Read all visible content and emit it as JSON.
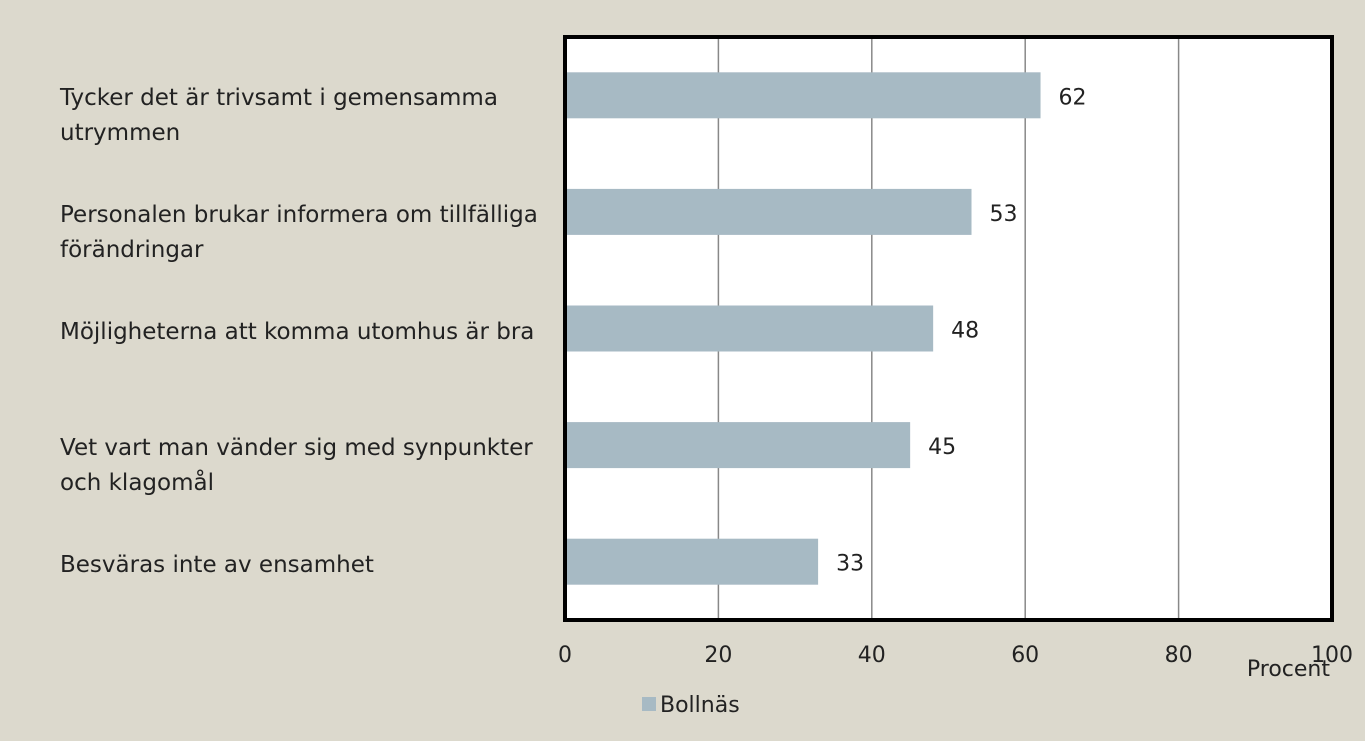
{
  "chart_data": {
    "type": "bar",
    "orientation": "horizontal",
    "categories": [
      "Tycker det är trivsamt i gemensamma utrymmen",
      "Personalen brukar informera om tillfälliga förändringar",
      "Möjligheterna att komma utomhus är bra",
      "Vet vart man vänder sig med synpunkter och klagomål",
      "Besväras inte av ensamhet"
    ],
    "series": [
      {
        "name": "Bollnäs",
        "color": "#a7bac4",
        "values": [
          62,
          53,
          48,
          45,
          33
        ]
      }
    ],
    "xlim": [
      0,
      100
    ],
    "xticks": [
      0,
      20,
      40,
      60,
      80,
      100
    ],
    "xlabel": "Procent",
    "grid": true,
    "legend": "bottom"
  }
}
